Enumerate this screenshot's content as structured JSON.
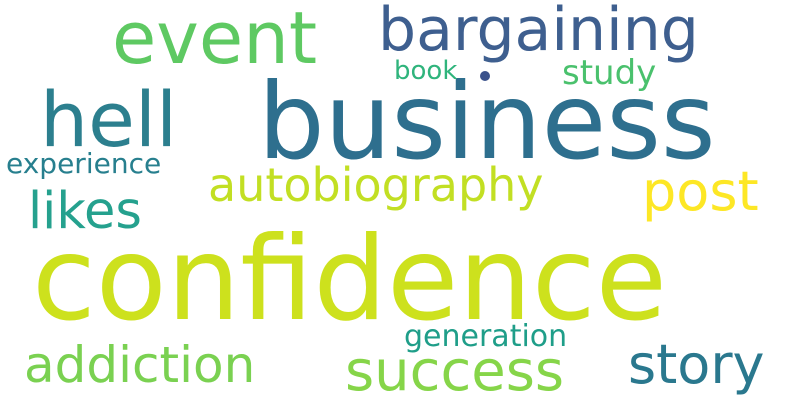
{
  "words": [
    {
      "id": "confidence",
      "text": "confidence",
      "color": "#cde11d"
    },
    {
      "id": "business",
      "text": "business",
      "color": "#2e6f8e"
    },
    {
      "id": "event",
      "text": "event",
      "color": "#5ec962"
    },
    {
      "id": "bargaining",
      "text": "bargaining",
      "color": "#3e5f8f"
    },
    {
      "id": "hell",
      "text": "hell",
      "color": "#2c7f8e"
    },
    {
      "id": "autobiography",
      "text": "autobiography",
      "color": "#c2df23"
    },
    {
      "id": "post",
      "text": "post",
      "color": "#fde725"
    },
    {
      "id": "likes",
      "text": "likes",
      "color": "#25a18e"
    },
    {
      "id": "experience",
      "text": "experience",
      "color": "#277f8e"
    },
    {
      "id": "book",
      "text": "book",
      "color": "#2fb47c"
    },
    {
      "id": "study",
      "text": "study",
      "color": "#4ac16d"
    },
    {
      "id": "addiction",
      "text": "addiction",
      "color": "#7ad151"
    },
    {
      "id": "success",
      "text": "success",
      "color": "#86d549"
    },
    {
      "id": "story",
      "text": "story",
      "color": "#2a788e"
    },
    {
      "id": "generation",
      "text": "generation",
      "color": "#1f9e89"
    }
  ],
  "dot_color": "#3b528b"
}
